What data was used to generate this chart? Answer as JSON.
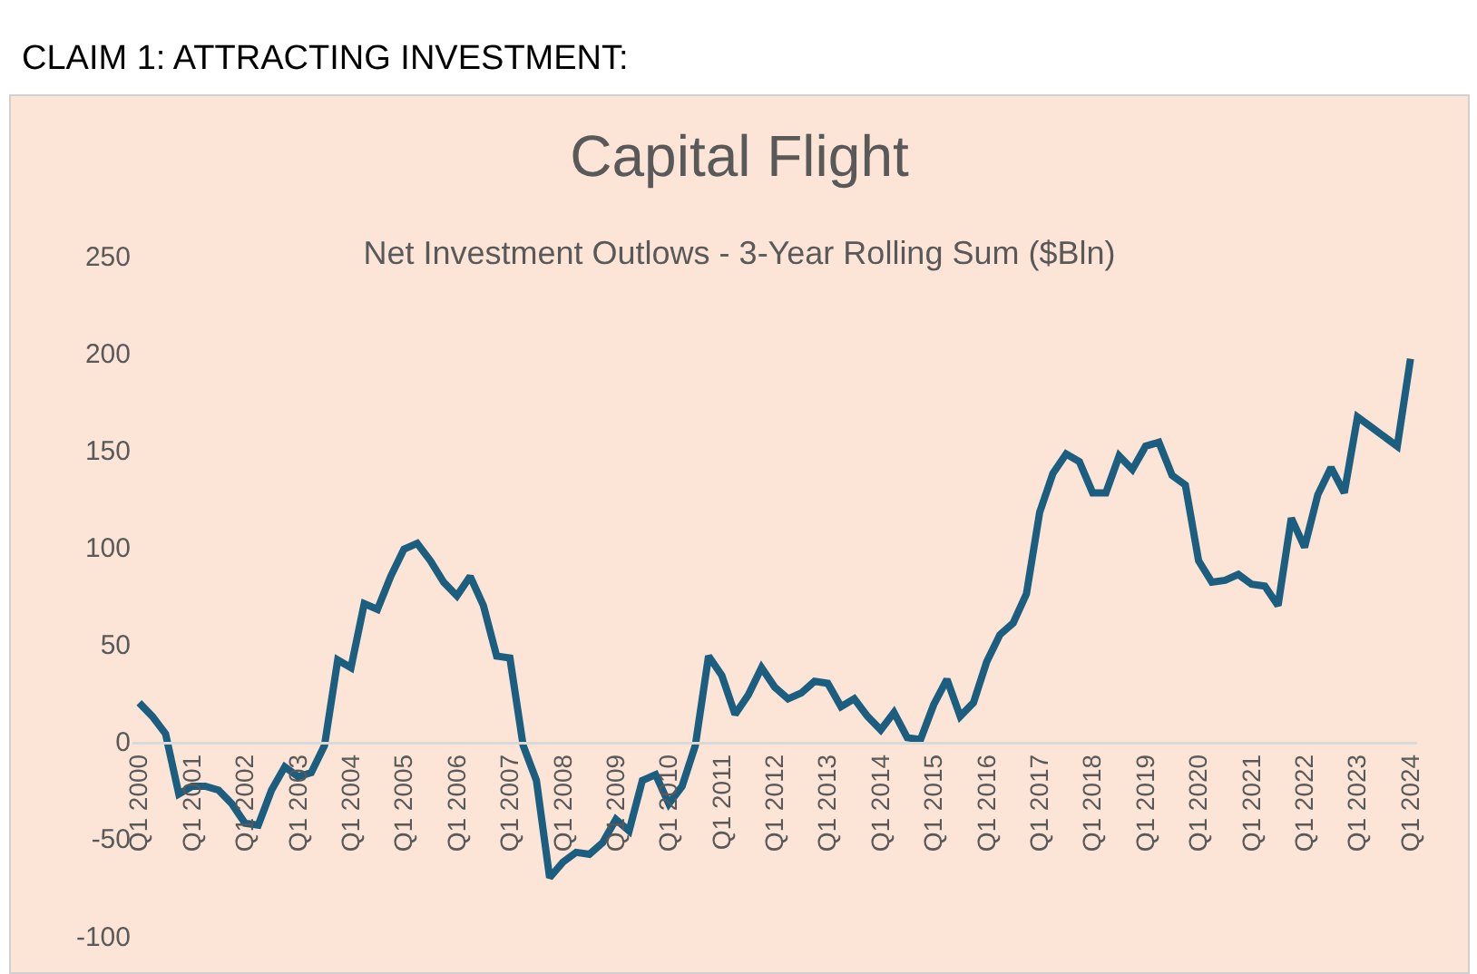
{
  "chart_data": {
    "type": "line",
    "title": "Capital Flight",
    "subtitle": "Net Investment Outlows - 3-Year Rolling Sum ($Bln)",
    "annotations": [
      "CLAIM 1: ATTRACTING INVESTMENT:"
    ],
    "categories": [
      "Q1 2000",
      null,
      null,
      null,
      "Q1 2001",
      null,
      null,
      null,
      "Q1 2002",
      null,
      null,
      null,
      "Q1 2003",
      null,
      null,
      null,
      "Q1 2004",
      null,
      null,
      null,
      "Q1 2005",
      null,
      null,
      null,
      "Q1 2006",
      null,
      null,
      null,
      "Q1 2007",
      null,
      null,
      null,
      "Q1 2008",
      null,
      null,
      null,
      "Q1 2009",
      null,
      null,
      null,
      "Q1 2010",
      null,
      null,
      null,
      "Q1 2011",
      null,
      null,
      null,
      "Q1 2012",
      null,
      null,
      null,
      "Q1 2013",
      null,
      null,
      null,
      "Q1 2014",
      null,
      null,
      null,
      "Q1 2015",
      null,
      null,
      null,
      "Q1 2016",
      null,
      null,
      null,
      "Q1 2017",
      null,
      null,
      null,
      "Q1 2018",
      null,
      null,
      null,
      "Q1 2019",
      null,
      null,
      null,
      "Q1 2020",
      null,
      null,
      null,
      "Q1 2021",
      null,
      null,
      null,
      "Q1 2022",
      null,
      null,
      null,
      "Q1 2023",
      null,
      null,
      null,
      "Q1 2024"
    ],
    "series": [
      {
        "color": "#1b5e7f",
        "values": [
          20,
          13,
          4,
          -27,
          -23,
          -23,
          -25,
          -32,
          -42,
          -43,
          -25,
          -13,
          -18,
          -16,
          -2,
          42,
          38,
          71,
          68,
          85,
          99,
          102,
          93,
          82,
          75,
          85,
          70,
          44,
          43,
          -2,
          -20,
          -70,
          -62,
          -57,
          -58,
          -52,
          -40,
          -46,
          -20,
          -17,
          -32,
          -23,
          -2,
          44,
          34,
          14,
          24,
          38,
          28,
          22,
          25,
          31,
          30,
          18,
          22,
          13,
          6,
          15,
          2,
          1,
          19,
          32,
          13,
          20,
          41,
          55,
          61,
          76,
          118,
          138,
          148,
          144,
          128,
          128,
          147,
          140,
          152,
          154,
          137,
          132,
          93,
          82,
          83,
          86,
          81,
          80,
          70,
          115,
          100,
          127,
          141,
          128,
          167,
          162,
          157,
          152,
          197
        ]
      }
    ],
    "ylim": [
      -100,
      250
    ],
    "yticks": [
      -100,
      -50,
      0,
      50,
      100,
      150,
      200,
      250
    ],
    "grid": false,
    "legend": false,
    "line_style": "solid",
    "marker": "none"
  }
}
